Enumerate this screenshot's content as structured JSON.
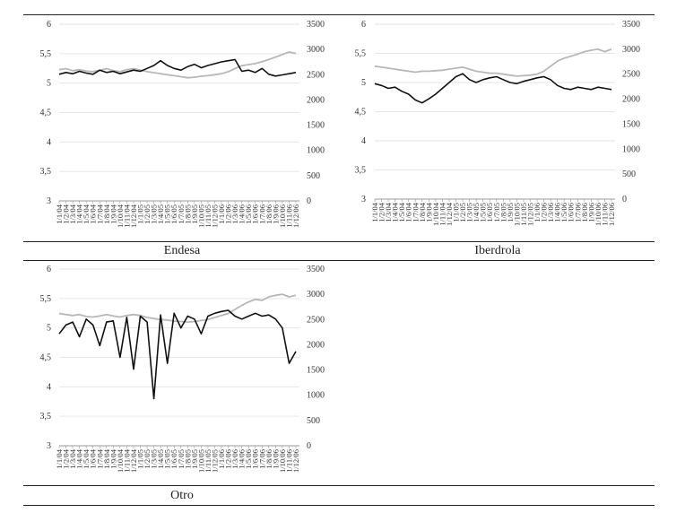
{
  "figure": {
    "panels": [
      "Endesa",
      "Iberdrola",
      "Otro"
    ]
  },
  "chart_data": [
    {
      "type": "line",
      "title": "Endesa",
      "left_axis": {
        "ylim": [
          3,
          6
        ],
        "ticks": [
          "3",
          "3,5",
          "4",
          "4,5",
          "5",
          "5,5",
          "6"
        ]
      },
      "right_axis": {
        "ylim": [
          0,
          3500
        ],
        "ticks": [
          "0",
          "500",
          "1000",
          "1500",
          "2000",
          "2500",
          "3000",
          "3500"
        ]
      },
      "x_tick_labels": [
        "1/1/04",
        "1/2/04",
        "1/3/04",
        "1/4/04",
        "1/5/04",
        "1/6/04",
        "1/7/04",
        "1/8/04",
        "1/9/04",
        "1/10/04",
        "1/11/04",
        "1/12/04",
        "1/1/05",
        "1/2/05",
        "1/3/05",
        "1/4/05",
        "1/5/05",
        "1/6/05",
        "1/7/05",
        "1/8/05",
        "1/9/05",
        "1/10/05",
        "1/11/05",
        "1/12/05",
        "1/1/06",
        "1/2/06",
        "1/3/06",
        "1/4/06",
        "1/5/06",
        "1/6/06",
        "1/7/06",
        "1/8/06",
        "1/9/06",
        "1/10/06",
        "1/11/06",
        "1/12/06"
      ],
      "series": [
        {
          "axis": "left",
          "color": "#111111",
          "values": [
            5.15,
            5.18,
            5.16,
            5.2,
            5.17,
            5.15,
            5.22,
            5.18,
            5.2,
            5.16,
            5.19,
            5.22,
            5.2,
            5.25,
            5.3,
            5.38,
            5.3,
            5.25,
            5.22,
            5.28,
            5.32,
            5.26,
            5.3,
            5.33,
            5.36,
            5.38,
            5.4,
            5.2,
            5.22,
            5.18,
            5.25,
            5.15,
            5.12,
            5.14,
            5.16,
            5.18
          ]
        },
        {
          "axis": "right",
          "color": "#b8b8b8",
          "values": [
            2600,
            2620,
            2580,
            2600,
            2570,
            2560,
            2590,
            2620,
            2580,
            2560,
            2600,
            2620,
            2590,
            2560,
            2540,
            2520,
            2500,
            2480,
            2460,
            2440,
            2450,
            2470,
            2480,
            2500,
            2520,
            2560,
            2620,
            2680,
            2700,
            2720,
            2760,
            2800,
            2850,
            2900,
            2950,
            2920
          ]
        }
      ]
    },
    {
      "type": "line",
      "title": "Iberdrola",
      "left_axis": {
        "ylim": [
          3,
          6
        ],
        "ticks": [
          "3",
          "3,5",
          "4",
          "4,5",
          "5",
          "5,5",
          "6"
        ]
      },
      "right_axis": {
        "ylim": [
          0,
          3500
        ],
        "ticks": [
          "0",
          "500",
          "1000",
          "1500",
          "2000",
          "2500",
          "3000",
          "3500"
        ]
      },
      "x_tick_labels": [
        "1/1/04",
        "1/2/04",
        "1/3/04",
        "1/4/04",
        "1/5/04",
        "1/6/04",
        "1/7/04",
        "1/8/04",
        "1/9/04",
        "1/10/04",
        "1/11/04",
        "1/12/04",
        "1/1/05",
        "1/2/05",
        "1/3/05",
        "1/4/05",
        "1/5/05",
        "1/6/05",
        "1/7/05",
        "1/8/05",
        "1/9/05",
        "1/10/05",
        "1/11/05",
        "1/12/05",
        "1/1/06",
        "1/2/06",
        "1/3/06",
        "1/4/06",
        "1/5/06",
        "1/6/06",
        "1/7/06",
        "1/8/06",
        "1/9/06",
        "1/10/06",
        "1/11/06",
        "1/12/06"
      ],
      "series": [
        {
          "axis": "left",
          "color": "#111111",
          "values": [
            4.98,
            4.95,
            4.9,
            4.92,
            4.85,
            4.8,
            4.7,
            4.65,
            4.72,
            4.8,
            4.9,
            5.0,
            5.1,
            5.15,
            5.05,
            5.0,
            5.05,
            5.08,
            5.1,
            5.05,
            5.0,
            4.98,
            5.02,
            5.05,
            5.08,
            5.1,
            5.05,
            4.95,
            4.9,
            4.88,
            4.92,
            4.9,
            4.88,
            4.92,
            4.9,
            4.88
          ]
        },
        {
          "axis": "right",
          "color": "#b8b8b8",
          "values": [
            2660,
            2640,
            2620,
            2600,
            2580,
            2560,
            2540,
            2560,
            2560,
            2570,
            2580,
            2600,
            2620,
            2640,
            2600,
            2560,
            2540,
            2520,
            2520,
            2500,
            2480,
            2460,
            2470,
            2480,
            2500,
            2560,
            2660,
            2760,
            2820,
            2860,
            2900,
            2950,
            2980,
            3000,
            2950,
            3000
          ]
        }
      ]
    },
    {
      "type": "line",
      "title": "Otro",
      "left_axis": {
        "ylim": [
          3,
          6
        ],
        "ticks": [
          "3",
          "3,5",
          "4",
          "4,5",
          "5",
          "5,5",
          "6"
        ]
      },
      "right_axis": {
        "ylim": [
          0,
          3500
        ],
        "ticks": [
          "0",
          "500",
          "1000",
          "1500",
          "2000",
          "2500",
          "3000",
          "3500"
        ]
      },
      "x_tick_labels": [
        "1/1/04",
        "1/2/04",
        "1/3/04",
        "1/4/04",
        "1/5/04",
        "1/6/04",
        "1/7/04",
        "1/8/04",
        "1/9/04",
        "1/10/04",
        "1/11/04",
        "1/12/04",
        "1/1/05",
        "1/2/05",
        "1/3/05",
        "1/4/05",
        "1/5/05",
        "1/6/05",
        "1/7/05",
        "1/8/05",
        "1/9/05",
        "1/10/05",
        "1/11/05",
        "1/12/05",
        "1/1/06",
        "1/2/06",
        "1/3/06",
        "1/4/06",
        "1/5/06",
        "1/6/06",
        "1/7/06",
        "1/8/06",
        "1/9/06",
        "1/10/06",
        "1/11/06",
        "1/12/06"
      ],
      "series": [
        {
          "axis": "left",
          "color": "#111111",
          "values": [
            4.9,
            5.05,
            5.1,
            4.85,
            5.15,
            5.05,
            4.7,
            5.1,
            5.12,
            4.5,
            5.18,
            4.3,
            5.2,
            5.1,
            3.8,
            5.22,
            4.4,
            5.25,
            5.0,
            5.2,
            5.15,
            4.9,
            5.2,
            5.25,
            5.28,
            5.3,
            5.2,
            5.15,
            5.2,
            5.25,
            5.2,
            5.22,
            5.15,
            5.0,
            4.4,
            4.6
          ]
        },
        {
          "axis": "right",
          "color": "#b8b8b8",
          "values": [
            2620,
            2600,
            2580,
            2600,
            2560,
            2550,
            2570,
            2600,
            2570,
            2550,
            2580,
            2600,
            2580,
            2540,
            2520,
            2500,
            2490,
            2470,
            2460,
            2450,
            2460,
            2480,
            2500,
            2540,
            2580,
            2620,
            2700,
            2780,
            2850,
            2900,
            2880,
            2950,
            2980,
            3000,
            2950,
            2980
          ]
        }
      ]
    }
  ]
}
